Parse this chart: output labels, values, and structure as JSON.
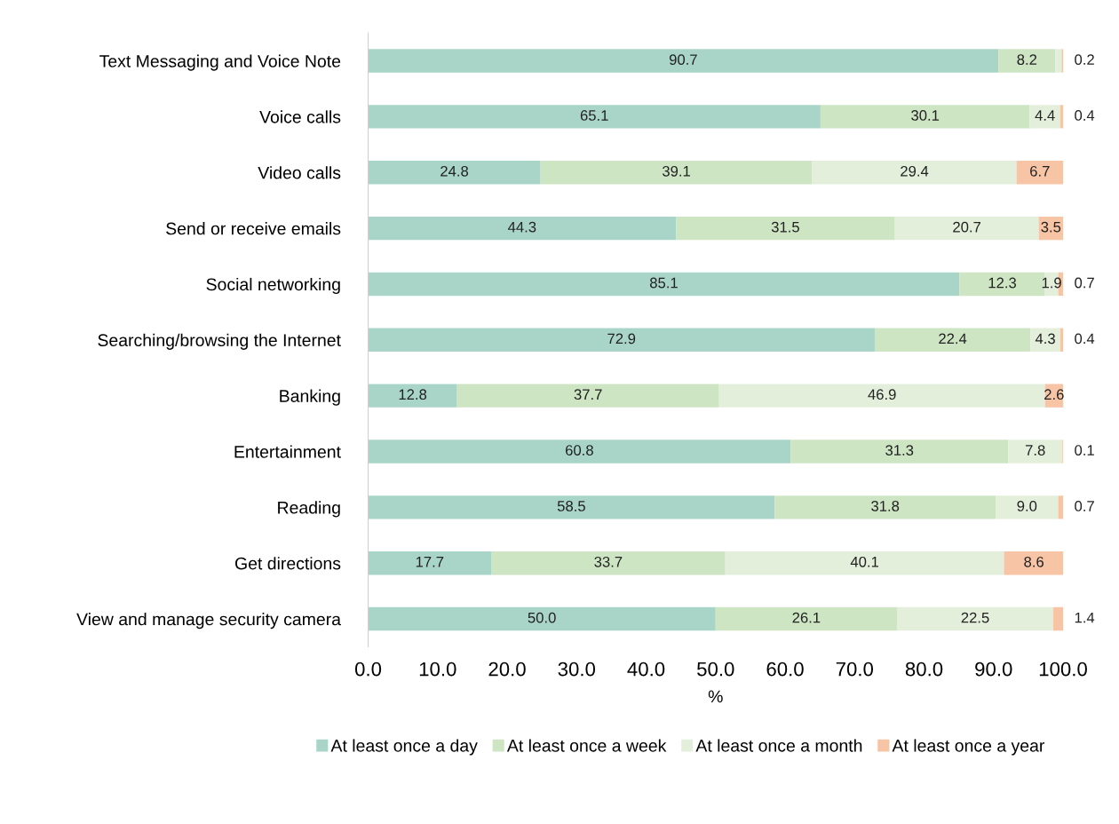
{
  "chart_data": {
    "type": "bar",
    "orientation": "horizontal",
    "stacked": true,
    "xlabel": "%",
    "legend": "bottom",
    "grid": false,
    "categories": [
      "Text Messaging and Voice Note",
      "Voice calls",
      "Video calls",
      "Send or receive emails",
      "Social networking",
      "Searching/browsing the Internet",
      "Banking",
      "Entertainment",
      "Reading",
      "Get directions",
      "View and manage security camera"
    ],
    "xlim": [
      0,
      100
    ],
    "xticks": [
      {
        "value": 0,
        "label": "0.0"
      },
      {
        "value": 10,
        "label": "10.0"
      },
      {
        "value": 20,
        "label": "20.0"
      },
      {
        "value": 30,
        "label": "30.0"
      },
      {
        "value": 40,
        "label": "40.0"
      },
      {
        "value": 50,
        "label": "50.0"
      },
      {
        "value": 60,
        "label": "60.0"
      },
      {
        "value": 70,
        "label": "70.0"
      },
      {
        "value": 80,
        "label": "80.0"
      },
      {
        "value": 90,
        "label": "90.0"
      },
      {
        "value": 100,
        "label": "100.0"
      }
    ],
    "series": [
      {
        "name": "At least once a day",
        "color": "#a9d5c9",
        "values": [
          90.7,
          65.1,
          24.8,
          44.3,
          85.1,
          72.9,
          12.8,
          60.8,
          58.5,
          17.7,
          50.0
        ],
        "value_labels": [
          "90.7",
          "65.1",
          "24.8",
          "44.3",
          "85.1",
          "72.9",
          "12.8",
          "60.8",
          "58.5",
          "17.7",
          "50.0"
        ]
      },
      {
        "name": "At least once a week",
        "color": "#cde5c3",
        "values": [
          8.2,
          30.1,
          39.1,
          31.5,
          12.3,
          22.4,
          37.7,
          31.3,
          31.8,
          33.7,
          26.1
        ],
        "value_labels": [
          "8.2",
          "30.1",
          "39.1",
          "31.5",
          "12.3",
          "22.4",
          "37.7",
          "31.3",
          "31.8",
          "33.7",
          "26.1"
        ]
      },
      {
        "name": "At least once a month",
        "color": "#e3efdb",
        "values": [
          0.9,
          4.4,
          29.4,
          20.7,
          1.9,
          4.3,
          46.9,
          7.8,
          9.0,
          40.1,
          22.5
        ],
        "value_labels": [
          null,
          "4.4",
          "29.4",
          "20.7",
          "1.9",
          "4.3",
          "46.9",
          "7.8",
          "9.0",
          "40.1",
          "22.5"
        ]
      },
      {
        "name": "At least once a year",
        "color": "#f7c5a5",
        "values": [
          0.2,
          0.4,
          6.7,
          3.5,
          0.7,
          0.4,
          2.6,
          0.1,
          0.7,
          8.6,
          1.4
        ],
        "value_labels": [
          "0.2",
          "0.4",
          "6.7",
          "3.5",
          "0.7",
          "0.4",
          "2.6",
          "0.1",
          "0.7",
          "8.6",
          "1.4"
        ]
      }
    ]
  }
}
